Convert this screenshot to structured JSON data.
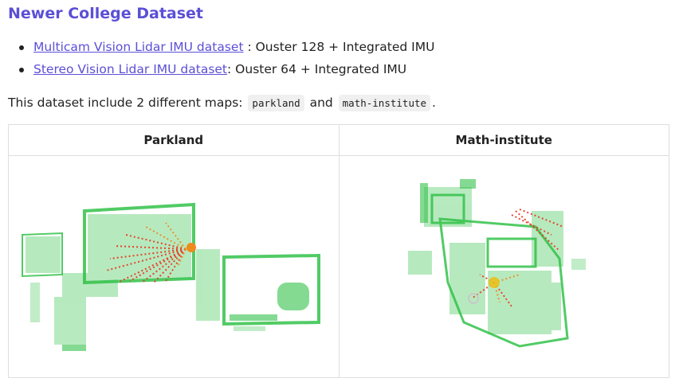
{
  "heading": "Newer College Dataset",
  "links": [
    {
      "link_text": "Multicam Vision Lidar IMU dataset",
      "suffix": " : Ouster 128 + Integrated IMU"
    },
    {
      "link_text": "Stereo Vision Lidar IMU dataset",
      "suffix": ": Ouster 64 + Integrated IMU"
    }
  ],
  "intro": {
    "prefix": "This dataset include 2 different maps: ",
    "code1": "parkland",
    "middle": " and ",
    "code2": "math-institute",
    "suffix": "."
  },
  "table": {
    "headers": [
      "Parkland",
      "Math-institute"
    ]
  },
  "colors": {
    "accent": "#5b4fd6",
    "map_green": "#33c24a",
    "map_red": "#e8351c",
    "map_orange": "#ef8a1d"
  }
}
